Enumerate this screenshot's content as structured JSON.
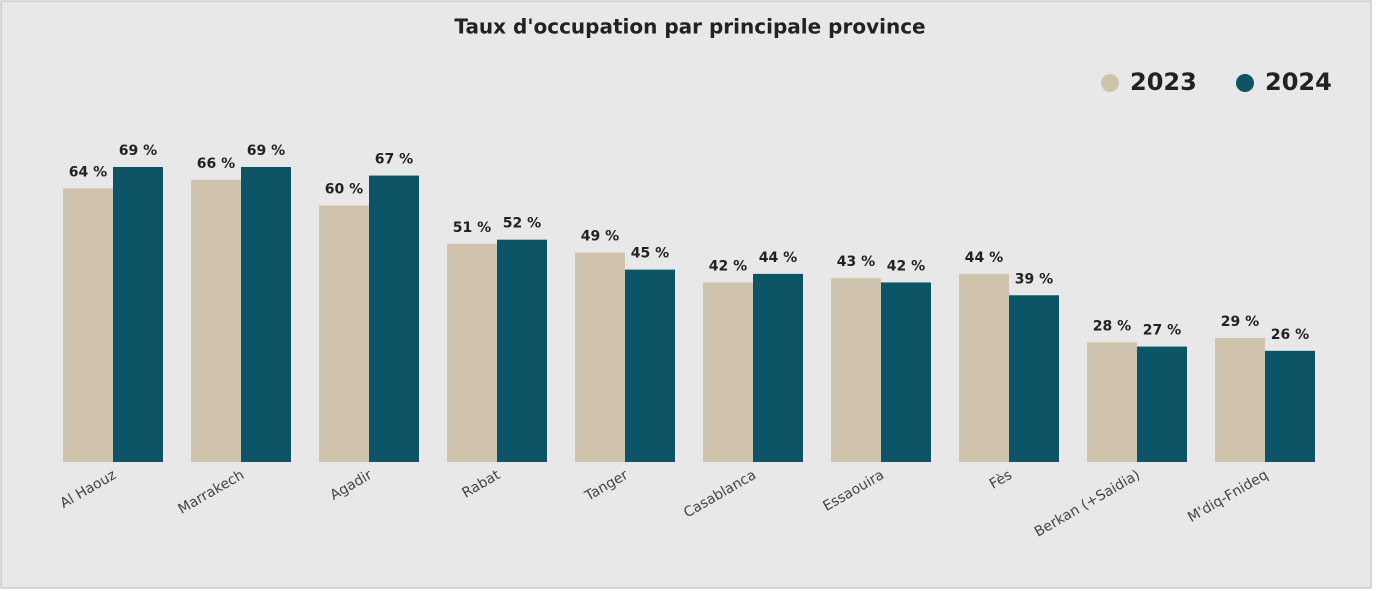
{
  "chart_data": {
    "type": "bar",
    "title": "Taux d'occupation par principale province",
    "categories": [
      "Al Haouz",
      "Marrakech",
      "Agadir",
      "Rabat",
      "Tanger",
      "Casablanca",
      "Essaouira",
      "Fès",
      "Berkan (+Saidia)",
      "M'diq-Fnideq"
    ],
    "series": [
      {
        "name": "2023",
        "color": "#cfc3ae",
        "values": [
          64,
          66,
          60,
          51,
          49,
          42,
          43,
          44,
          28,
          29
        ],
        "value_labels": [
          "64 %",
          "66 %",
          "60 %",
          "51 %",
          "49 %",
          "42 %",
          "43 %",
          "44 %",
          "28 %",
          "29 %"
        ]
      },
      {
        "name": "2024",
        "color": "#0d5467",
        "values": [
          69,
          69,
          67,
          52,
          45,
          44,
          42,
          39,
          27,
          26
        ],
        "value_labels": [
          "69 %",
          "69 %",
          "67 %",
          "52 %",
          "45 %",
          "44 %",
          "42 %",
          "39 %",
          "27 %",
          "26 %"
        ]
      }
    ],
    "legend": "top-right"
  }
}
